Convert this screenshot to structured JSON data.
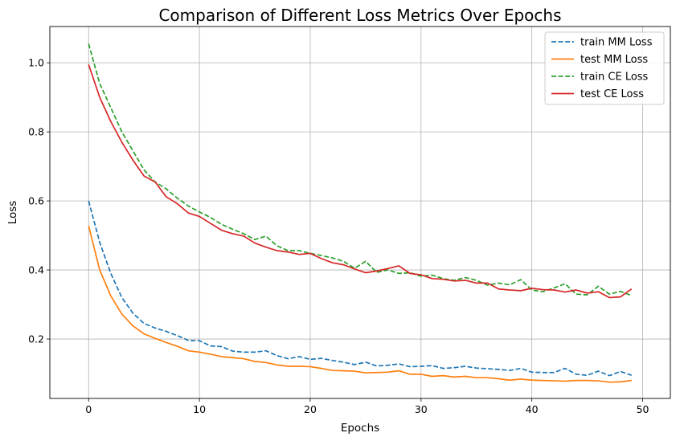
{
  "chart_data": {
    "type": "line",
    "title": "Comparison of Different Loss Metrics Over Epochs",
    "xlabel": "Epochs",
    "ylabel": "Loss",
    "xlim": [
      -3.5,
      52.5
    ],
    "ylim": [
      0.028,
      1.105
    ],
    "xticks": [
      0,
      10,
      20,
      30,
      40,
      50
    ],
    "yticks": [
      0.2,
      0.4,
      0.6,
      0.8,
      1.0
    ],
    "xtick_labels": [
      "0",
      "10",
      "20",
      "30",
      "40",
      "50"
    ],
    "ytick_labels": [
      "0.2",
      "0.4",
      "0.6",
      "0.8",
      "1.0"
    ],
    "grid": true,
    "legend_position": "top-right",
    "x": [
      0,
      1,
      2,
      3,
      4,
      5,
      6,
      7,
      8,
      9,
      10,
      11,
      12,
      13,
      14,
      15,
      16,
      17,
      18,
      19,
      20,
      21,
      22,
      23,
      24,
      25,
      26,
      27,
      28,
      29,
      30,
      31,
      32,
      33,
      34,
      35,
      36,
      37,
      38,
      39,
      40,
      41,
      42,
      43,
      44,
      45,
      46,
      47,
      48,
      49
    ],
    "series": [
      {
        "name": "train MM Loss",
        "color": "#1f77b4",
        "dash": "dashed",
        "values": [
          0.6,
          0.48,
          0.39,
          0.32,
          0.275,
          0.245,
          0.232,
          0.222,
          0.21,
          0.196,
          0.195,
          0.18,
          0.178,
          0.165,
          0.162,
          0.162,
          0.166,
          0.152,
          0.143,
          0.149,
          0.141,
          0.144,
          0.138,
          0.133,
          0.126,
          0.133,
          0.122,
          0.124,
          0.128,
          0.12,
          0.121,
          0.123,
          0.115,
          0.117,
          0.121,
          0.116,
          0.114,
          0.112,
          0.109,
          0.115,
          0.104,
          0.103,
          0.103,
          0.115,
          0.098,
          0.095,
          0.107,
          0.094,
          0.106,
          0.095
        ]
      },
      {
        "name": "test MM Loss",
        "color": "#ff7f0e",
        "dash": "solid",
        "values": [
          0.528,
          0.4,
          0.325,
          0.272,
          0.238,
          0.215,
          0.202,
          0.19,
          0.179,
          0.166,
          0.162,
          0.156,
          0.149,
          0.146,
          0.143,
          0.135,
          0.132,
          0.125,
          0.121,
          0.121,
          0.12,
          0.115,
          0.109,
          0.108,
          0.107,
          0.102,
          0.103,
          0.104,
          0.108,
          0.098,
          0.098,
          0.092,
          0.094,
          0.09,
          0.092,
          0.088,
          0.088,
          0.085,
          0.081,
          0.084,
          0.081,
          0.08,
          0.079,
          0.078,
          0.08,
          0.08,
          0.079,
          0.075,
          0.076,
          0.08
        ]
      },
      {
        "name": "train CE Loss",
        "color": "#2ca02c",
        "dash": "dashed",
        "values": [
          1.055,
          0.94,
          0.87,
          0.8,
          0.745,
          0.69,
          0.655,
          0.635,
          0.608,
          0.585,
          0.568,
          0.552,
          0.532,
          0.518,
          0.505,
          0.488,
          0.498,
          0.47,
          0.456,
          0.456,
          0.448,
          0.442,
          0.435,
          0.425,
          0.405,
          0.425,
          0.393,
          0.4,
          0.39,
          0.392,
          0.382,
          0.385,
          0.375,
          0.37,
          0.378,
          0.37,
          0.356,
          0.362,
          0.357,
          0.372,
          0.342,
          0.337,
          0.348,
          0.36,
          0.33,
          0.328,
          0.353,
          0.33,
          0.338,
          0.326
        ]
      },
      {
        "name": "test CE Loss",
        "color": "#d62728",
        "dash": "solid",
        "values": [
          0.995,
          0.9,
          0.83,
          0.77,
          0.718,
          0.672,
          0.655,
          0.612,
          0.592,
          0.565,
          0.555,
          0.535,
          0.515,
          0.505,
          0.498,
          0.478,
          0.466,
          0.456,
          0.452,
          0.445,
          0.448,
          0.433,
          0.421,
          0.415,
          0.403,
          0.392,
          0.397,
          0.404,
          0.412,
          0.39,
          0.386,
          0.375,
          0.373,
          0.368,
          0.37,
          0.362,
          0.362,
          0.345,
          0.342,
          0.34,
          0.347,
          0.343,
          0.342,
          0.336,
          0.342,
          0.333,
          0.337,
          0.32,
          0.322,
          0.345
        ]
      }
    ]
  }
}
